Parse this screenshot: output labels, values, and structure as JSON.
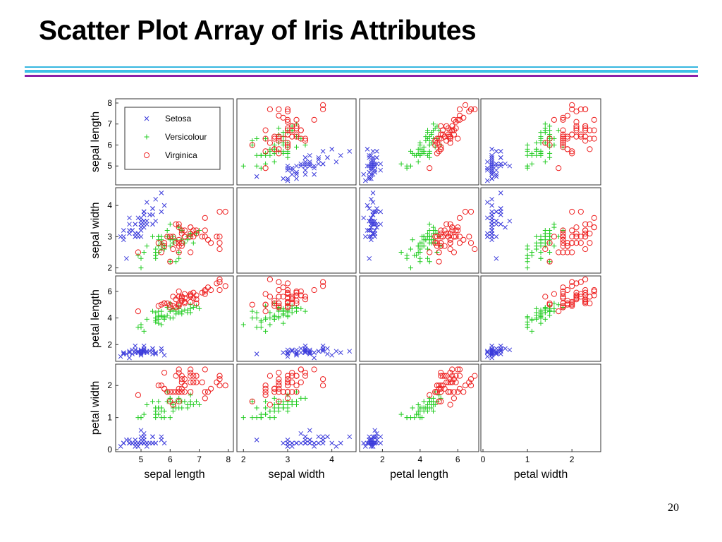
{
  "slide": {
    "title": "Scatter Plot Array of Iris Attributes",
    "page_number": "20"
  },
  "colors": {
    "title_rule_1": "#37b7df",
    "title_rule_2": "#3fc0e7",
    "title_rule_3": "#8a1fa8"
  },
  "chart_data": {
    "type": "scatter",
    "subtype": "scatter-matrix",
    "attributes": [
      {
        "key": "sepal_length",
        "label": "sepal length",
        "range": [
          4.2,
          8.1
        ],
        "ticks": [
          5,
          6,
          7,
          8
        ]
      },
      {
        "key": "sepal_width",
        "label": "sepal width",
        "range": [
          1.9,
          4.5
        ],
        "ticks": [
          2,
          3,
          4
        ]
      },
      {
        "key": "petal_length",
        "label": "petal length",
        "range": [
          0.9,
          7.0
        ],
        "ticks": [
          2,
          4,
          6
        ]
      },
      {
        "key": "petal_width",
        "label": "petal width",
        "range": [
          0,
          2.6
        ],
        "ticks": [
          0,
          1,
          2
        ]
      }
    ],
    "diagonal": "empty",
    "grid": false,
    "legend": {
      "position": "top-left panel",
      "entries": [
        "Setosa",
        "Versicolour",
        "Virginica"
      ]
    },
    "series": [
      {
        "name": "Setosa",
        "marker": "x",
        "color": "#3b3bdb",
        "points": [
          [
            4.9,
            3.0,
            1.4,
            0.2
          ],
          [
            4.7,
            3.2,
            1.3,
            0.2
          ],
          [
            4.6,
            3.1,
            1.5,
            0.2
          ],
          [
            5.0,
            3.6,
            1.4,
            0.2
          ],
          [
            5.4,
            3.9,
            1.7,
            0.4
          ],
          [
            4.6,
            3.4,
            1.4,
            0.3
          ],
          [
            5.0,
            3.4,
            1.5,
            0.2
          ],
          [
            4.4,
            2.9,
            1.4,
            0.2
          ],
          [
            4.9,
            3.1,
            1.5,
            0.1
          ],
          [
            5.4,
            3.7,
            1.5,
            0.2
          ],
          [
            4.8,
            3.4,
            1.6,
            0.2
          ],
          [
            4.8,
            3.0,
            1.4,
            0.1
          ],
          [
            4.3,
            3.0,
            1.1,
            0.1
          ],
          [
            5.8,
            4.0,
            1.2,
            0.2
          ],
          [
            5.7,
            4.4,
            1.5,
            0.4
          ],
          [
            5.4,
            3.9,
            1.3,
            0.4
          ],
          [
            5.1,
            3.5,
            1.4,
            0.3
          ],
          [
            5.7,
            3.8,
            1.7,
            0.3
          ],
          [
            5.1,
            3.8,
            1.5,
            0.3
          ],
          [
            5.4,
            3.4,
            1.7,
            0.2
          ],
          [
            5.1,
            3.7,
            1.5,
            0.4
          ],
          [
            4.6,
            3.6,
            1.0,
            0.2
          ],
          [
            5.1,
            3.3,
            1.7,
            0.5
          ],
          [
            4.8,
            3.4,
            1.9,
            0.2
          ],
          [
            5.0,
            3.0,
            1.6,
            0.2
          ],
          [
            5.0,
            3.4,
            1.6,
            0.4
          ],
          [
            5.2,
            3.5,
            1.5,
            0.2
          ],
          [
            5.2,
            3.4,
            1.4,
            0.2
          ],
          [
            4.7,
            3.2,
            1.6,
            0.2
          ],
          [
            4.8,
            3.1,
            1.6,
            0.2
          ],
          [
            5.4,
            3.4,
            1.5,
            0.4
          ],
          [
            5.2,
            4.1,
            1.5,
            0.1
          ],
          [
            5.5,
            4.2,
            1.4,
            0.2
          ],
          [
            4.9,
            3.1,
            1.5,
            0.2
          ],
          [
            5.0,
            3.2,
            1.2,
            0.2
          ],
          [
            5.5,
            3.5,
            1.3,
            0.2
          ],
          [
            4.4,
            3.0,
            1.3,
            0.2
          ],
          [
            5.1,
            3.4,
            1.5,
            0.2
          ],
          [
            5.0,
            3.5,
            1.3,
            0.3
          ],
          [
            4.5,
            2.3,
            1.3,
            0.3
          ],
          [
            4.4,
            3.2,
            1.3,
            0.2
          ],
          [
            5.0,
            3.5,
            1.6,
            0.6
          ],
          [
            5.1,
            3.8,
            1.9,
            0.4
          ],
          [
            4.8,
            3.0,
            1.4,
            0.3
          ],
          [
            5.1,
            3.8,
            1.6,
            0.2
          ],
          [
            4.6,
            3.2,
            1.4,
            0.2
          ],
          [
            5.3,
            3.7,
            1.5,
            0.2
          ],
          [
            5.0,
            3.3,
            1.4,
            0.2
          ],
          [
            5.1,
            3.5,
            1.4,
            0.2
          ],
          [
            4.9,
            3.6,
            1.4,
            0.1
          ]
        ]
      },
      {
        "name": "Versicolour",
        "marker": "+",
        "color": "#22cc22",
        "points": [
          [
            7.0,
            3.2,
            4.7,
            1.4
          ],
          [
            6.4,
            3.2,
            4.5,
            1.5
          ],
          [
            6.9,
            3.1,
            4.9,
            1.5
          ],
          [
            5.5,
            2.3,
            4.0,
            1.3
          ],
          [
            6.5,
            2.8,
            4.6,
            1.5
          ],
          [
            5.7,
            2.8,
            4.5,
            1.3
          ],
          [
            6.3,
            3.3,
            4.7,
            1.6
          ],
          [
            4.9,
            2.4,
            3.3,
            1.0
          ],
          [
            6.6,
            2.9,
            4.6,
            1.3
          ],
          [
            5.2,
            2.7,
            3.9,
            1.4
          ],
          [
            5.0,
            2.0,
            3.5,
            1.0
          ],
          [
            5.9,
            3.0,
            4.2,
            1.5
          ],
          [
            6.0,
            2.2,
            4.0,
            1.0
          ],
          [
            6.1,
            2.9,
            4.7,
            1.4
          ],
          [
            5.6,
            2.9,
            3.6,
            1.3
          ],
          [
            6.7,
            3.1,
            4.4,
            1.4
          ],
          [
            5.6,
            3.0,
            4.5,
            1.5
          ],
          [
            5.8,
            2.7,
            4.1,
            1.0
          ],
          [
            6.2,
            2.2,
            4.5,
            1.5
          ],
          [
            5.6,
            2.5,
            3.9,
            1.1
          ],
          [
            5.9,
            3.2,
            4.8,
            1.8
          ],
          [
            6.1,
            2.8,
            4.0,
            1.3
          ],
          [
            6.3,
            2.5,
            4.9,
            1.5
          ],
          [
            6.1,
            2.8,
            4.7,
            1.2
          ],
          [
            6.4,
            2.9,
            4.3,
            1.3
          ],
          [
            6.6,
            3.0,
            4.4,
            1.4
          ],
          [
            6.8,
            2.8,
            4.8,
            1.4
          ],
          [
            6.7,
            3.0,
            5.0,
            1.7
          ],
          [
            6.0,
            2.9,
            4.5,
            1.5
          ],
          [
            5.7,
            2.6,
            3.5,
            1.0
          ],
          [
            5.5,
            2.4,
            3.8,
            1.1
          ],
          [
            5.5,
            2.4,
            3.7,
            1.0
          ],
          [
            5.8,
            2.7,
            3.9,
            1.2
          ],
          [
            6.0,
            2.7,
            5.1,
            1.6
          ],
          [
            5.4,
            3.0,
            4.5,
            1.5
          ],
          [
            6.0,
            3.4,
            4.5,
            1.6
          ],
          [
            6.7,
            3.1,
            4.7,
            1.5
          ],
          [
            6.3,
            2.3,
            4.4,
            1.3
          ],
          [
            5.6,
            3.0,
            4.1,
            1.3
          ],
          [
            5.5,
            2.5,
            4.0,
            1.3
          ],
          [
            5.5,
            2.6,
            4.4,
            1.2
          ],
          [
            6.1,
            3.0,
            4.6,
            1.4
          ],
          [
            5.8,
            2.6,
            4.0,
            1.2
          ],
          [
            5.0,
            2.3,
            3.3,
            1.0
          ],
          [
            5.6,
            2.7,
            4.2,
            1.3
          ],
          [
            5.7,
            3.0,
            4.2,
            1.2
          ],
          [
            5.7,
            2.9,
            4.2,
            1.3
          ],
          [
            6.2,
            2.9,
            4.3,
            1.3
          ],
          [
            5.1,
            2.5,
            3.0,
            1.1
          ],
          [
            5.7,
            2.8,
            4.1,
            1.3
          ]
        ]
      },
      {
        "name": "Virginica",
        "marker": "o",
        "color": "#ee2222",
        "points": [
          [
            6.3,
            3.3,
            6.0,
            2.5
          ],
          [
            5.8,
            2.7,
            5.1,
            1.9
          ],
          [
            7.1,
            3.0,
            5.9,
            2.1
          ],
          [
            6.3,
            2.9,
            5.6,
            1.8
          ],
          [
            6.5,
            3.0,
            5.8,
            2.2
          ],
          [
            7.6,
            3.0,
            6.6,
            2.1
          ],
          [
            4.9,
            2.5,
            4.5,
            1.7
          ],
          [
            7.3,
            2.9,
            6.3,
            1.8
          ],
          [
            6.7,
            2.5,
            5.8,
            1.8
          ],
          [
            7.2,
            3.6,
            6.1,
            2.5
          ],
          [
            6.5,
            3.2,
            5.1,
            2.0
          ],
          [
            6.4,
            2.7,
            5.3,
            1.9
          ],
          [
            6.8,
            3.0,
            5.5,
            2.1
          ],
          [
            5.7,
            2.5,
            5.0,
            2.0
          ],
          [
            5.8,
            2.8,
            5.1,
            2.4
          ],
          [
            6.4,
            3.2,
            5.3,
            2.3
          ],
          [
            6.5,
            3.0,
            5.5,
            1.8
          ],
          [
            7.7,
            3.8,
            6.7,
            2.2
          ],
          [
            7.7,
            2.6,
            6.9,
            2.3
          ],
          [
            6.0,
            2.2,
            5.0,
            1.5
          ],
          [
            6.9,
            3.2,
            5.7,
            2.3
          ],
          [
            5.6,
            2.8,
            4.9,
            2.0
          ],
          [
            7.7,
            2.8,
            6.7,
            2.0
          ],
          [
            6.3,
            2.7,
            4.9,
            1.8
          ],
          [
            6.7,
            3.3,
            5.7,
            2.1
          ],
          [
            7.2,
            3.2,
            6.0,
            1.8
          ],
          [
            6.2,
            2.8,
            4.8,
            1.8
          ],
          [
            6.1,
            3.0,
            4.9,
            1.8
          ],
          [
            6.4,
            2.8,
            5.6,
            2.1
          ],
          [
            7.2,
            3.0,
            5.8,
            1.6
          ],
          [
            7.4,
            2.8,
            6.1,
            1.9
          ],
          [
            7.9,
            3.8,
            6.4,
            2.0
          ],
          [
            6.4,
            2.8,
            5.6,
            2.2
          ],
          [
            6.3,
            2.8,
            5.1,
            1.5
          ],
          [
            6.1,
            2.6,
            5.6,
            1.4
          ],
          [
            7.7,
            3.0,
            6.1,
            2.3
          ],
          [
            6.3,
            3.4,
            5.6,
            2.4
          ],
          [
            6.4,
            3.1,
            5.5,
            1.8
          ],
          [
            6.0,
            3.0,
            4.8,
            1.8
          ],
          [
            6.9,
            3.1,
            5.4,
            2.1
          ],
          [
            6.7,
            3.1,
            5.6,
            2.4
          ],
          [
            6.9,
            3.1,
            5.1,
            2.3
          ],
          [
            5.8,
            2.7,
            5.1,
            1.9
          ],
          [
            6.8,
            3.2,
            5.9,
            2.3
          ],
          [
            6.7,
            3.3,
            5.7,
            2.5
          ],
          [
            6.7,
            3.0,
            5.2,
            2.3
          ],
          [
            6.3,
            2.5,
            5.0,
            1.9
          ],
          [
            6.5,
            3.0,
            5.2,
            2.0
          ],
          [
            6.2,
            3.4,
            5.4,
            2.3
          ],
          [
            5.9,
            3.0,
            5.1,
            1.8
          ]
        ]
      }
    ]
  }
}
